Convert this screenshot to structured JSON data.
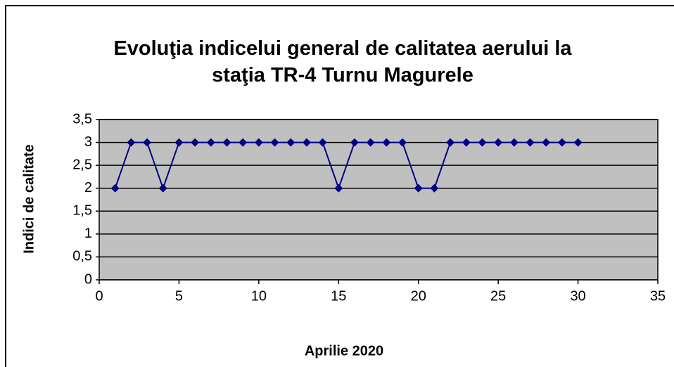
{
  "chart_data": {
    "type": "line",
    "title": "Evoluţia indicelui general de calitatea aerului la staţia TR-4 Turnu Magurele",
    "x_label": "Aprilie 2020",
    "y_label": "Indici de calitate",
    "x": [
      1,
      2,
      3,
      4,
      5,
      6,
      7,
      8,
      9,
      10,
      11,
      12,
      13,
      14,
      15,
      16,
      17,
      18,
      19,
      20,
      21,
      22,
      23,
      24,
      25,
      26,
      27,
      28,
      29,
      30
    ],
    "series": [
      {
        "name": "Indici de calitate",
        "color": "#000080",
        "values": [
          2,
          3,
          3,
          2,
          3,
          3,
          3,
          3,
          3,
          3,
          3,
          3,
          3,
          3,
          2,
          3,
          3,
          3,
          3,
          2,
          2,
          3,
          3,
          3,
          3,
          3,
          3,
          3,
          3,
          3
        ]
      }
    ],
    "xlim": [
      0,
      35
    ],
    "xticks": [
      0,
      5,
      10,
      15,
      20,
      25,
      30,
      35
    ],
    "ylim": [
      0,
      3.5
    ],
    "yticks": [
      0,
      {
        "value": 0.5,
        "label": "0,5"
      },
      1,
      {
        "value": 1.5,
        "label": "1,5"
      },
      2,
      {
        "value": 2.5,
        "label": "2,5"
      },
      3,
      {
        "value": 3.5,
        "label": "3,5"
      }
    ],
    "grid": true,
    "plot_background": "#c0c0c0"
  }
}
